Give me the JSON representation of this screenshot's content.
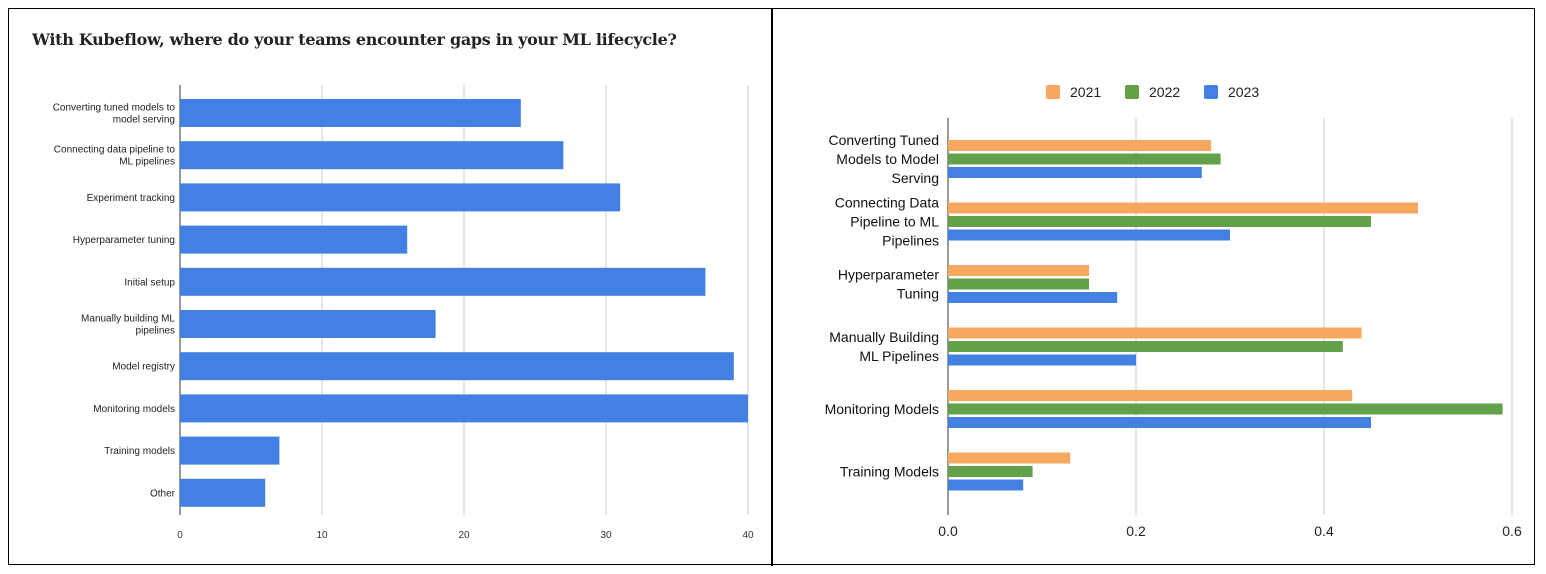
{
  "chart_data": [
    {
      "type": "bar",
      "orientation": "horizontal",
      "title": "With Kubeflow, where do your teams encounter gaps in your ML lifecycle?",
      "categories": [
        "Converting tuned models to model serving",
        "Connecting data pipeline to ML pipelines",
        "Experiment tracking",
        "Hyperparameter tuning",
        "Initial setup",
        "Manually building ML pipelines",
        "Model registry",
        "Monitoring models",
        "Training models",
        "Other"
      ],
      "values": [
        24,
        27,
        31,
        16,
        37,
        18,
        39,
        40,
        7,
        6
      ],
      "xlim": [
        0,
        40
      ],
      "xticks": [
        "0",
        "10",
        "20",
        "30",
        "40"
      ],
      "grid": true,
      "color": "#4280e3"
    },
    {
      "type": "bar",
      "orientation": "horizontal",
      "categories": [
        "Converting Tuned Models to Model Serving",
        "Connecting Data Pipeline to ML Pipelines",
        "Hyperparameter Tuning",
        "Manually Building ML Pipelines",
        "Monitoring Models",
        "Training Models"
      ],
      "category_lines": [
        [
          "Converting Tuned",
          "Models to Model",
          "Serving"
        ],
        [
          "Connecting Data",
          "Pipeline to ML",
          "Pipelines"
        ],
        [
          "Hyperparameter",
          "Tuning"
        ],
        [
          "Manually Building",
          "ML Pipelines"
        ],
        [
          "Monitoring Models"
        ],
        [
          "Training Models"
        ]
      ],
      "series": [
        {
          "name": "2021",
          "color": "#f6a95e",
          "values": [
            0.28,
            0.5,
            0.15,
            0.44,
            0.43,
            0.13
          ]
        },
        {
          "name": "2022",
          "color": "#62a04a",
          "values": [
            0.29,
            0.45,
            0.15,
            0.42,
            0.59,
            0.09
          ]
        },
        {
          "name": "2023",
          "color": "#4280e3",
          "values": [
            0.27,
            0.3,
            0.18,
            0.2,
            0.45,
            0.08
          ]
        }
      ],
      "xlim": [
        0,
        0.6
      ],
      "xticks": [
        "0.0",
        "0.2",
        "0.4",
        "0.6"
      ],
      "grid": true,
      "legend": "top"
    }
  ]
}
